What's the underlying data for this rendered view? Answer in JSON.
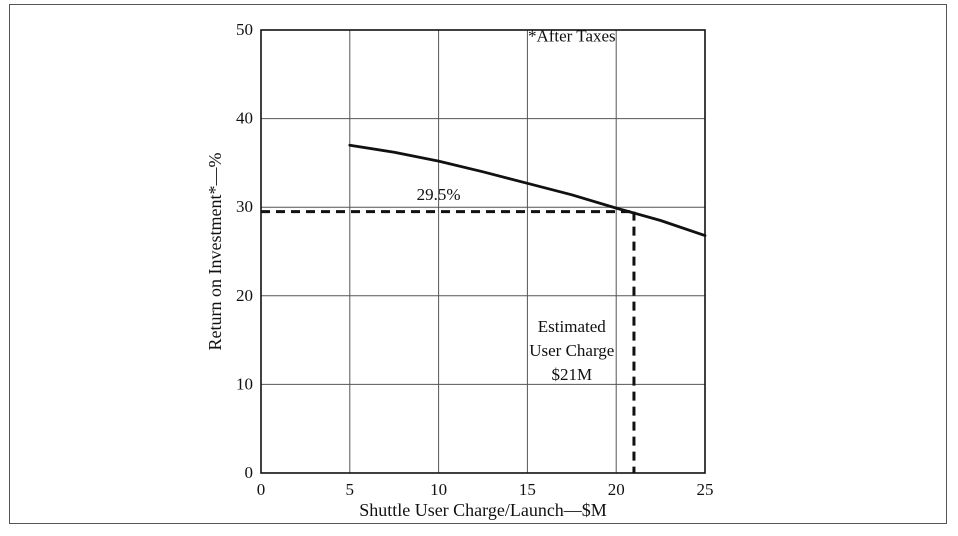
{
  "chart_data": {
    "type": "line",
    "title": "",
    "xlabel": "Shuttle User Charge/Launch—$M",
    "ylabel": "Return on Investment*—%",
    "xlim": [
      0,
      25
    ],
    "ylim": [
      0,
      50
    ],
    "xticks": [
      0,
      5,
      10,
      15,
      20,
      25
    ],
    "yticks": [
      0,
      10,
      20,
      30,
      40,
      50
    ],
    "grid": true,
    "series": [
      {
        "x": [
          5,
          7.5,
          10,
          12.5,
          15,
          17.5,
          20,
          22.5,
          25
        ],
        "y": [
          37,
          36.2,
          35.2,
          34.0,
          32.7,
          31.4,
          29.9,
          28.5,
          26.8
        ],
        "style": "solid"
      }
    ],
    "reference_lines": [
      {
        "x": [
          0,
          21
        ],
        "y": [
          29.5,
          29.5
        ],
        "style": "dashed"
      },
      {
        "x": [
          21,
          21
        ],
        "y": [
          29.5,
          0
        ],
        "style": "dashed"
      }
    ],
    "annotations": [
      {
        "text": "*After Taxes",
        "x": 17.5,
        "y": 48.7
      },
      {
        "text": "29.5%",
        "x": 10,
        "y": 30.8
      },
      {
        "text": "Estimated",
        "x": 17.5,
        "y": 15.9
      },
      {
        "text": "User Charge",
        "x": 17.5,
        "y": 13.2
      },
      {
        "text": "$21M",
        "x": 17.5,
        "y": 10.5
      }
    ]
  }
}
